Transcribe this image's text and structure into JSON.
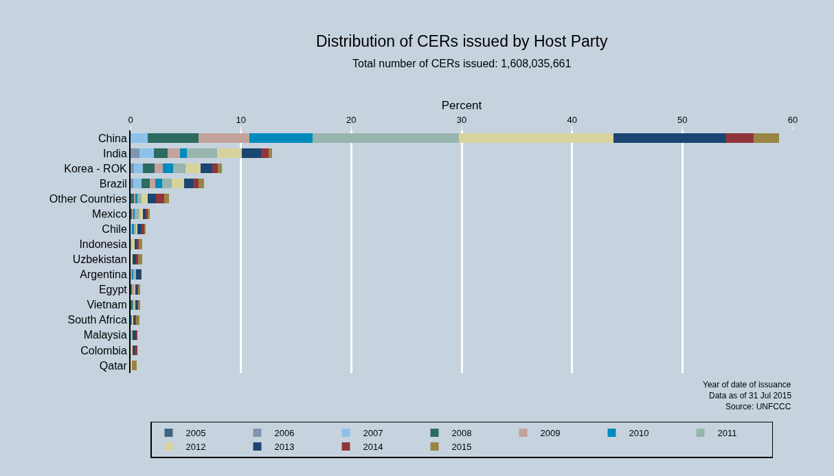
{
  "chart_data": {
    "type": "bar",
    "orientation": "horizontal",
    "stacked": true,
    "title": "Distribution of CERs issued by Host Party",
    "subtitle": "Total number of CERs issued: 1,608,035,661",
    "xlabel": "Percent",
    "categories": [
      "China",
      "India",
      "Korea - ROK",
      "Brazil",
      "Other Countries",
      "Mexico",
      "Chile",
      "Indonesia",
      "Uzbekistan",
      "Argentina",
      "Egypt",
      "Vietnam",
      "South Africa",
      "Malaysia",
      "Colombia",
      "Qatar"
    ],
    "series": [
      {
        "name": "2005",
        "color": "#3e6481",
        "values": [
          0,
          0,
          0,
          0,
          0,
          0,
          0,
          0,
          0,
          0,
          0,
          0,
          0,
          0,
          0,
          0
        ]
      },
      {
        "name": "2006",
        "color": "#7f95ad",
        "values": [
          0,
          0.81,
          0.33,
          0.23,
          0,
          0,
          0,
          0,
          0,
          0,
          0,
          0,
          0,
          0,
          0,
          0
        ]
      },
      {
        "name": "2007",
        "color": "#8cc2ea",
        "values": [
          1.57,
          1.32,
          0.82,
          0.75,
          0,
          0,
          0.14,
          0,
          0,
          0,
          0,
          0,
          0,
          0,
          0,
          0
        ]
      },
      {
        "name": "2008",
        "color": "#2d6b61",
        "values": [
          4.6,
          1.25,
          1.04,
          0.77,
          0.33,
          0.14,
          0,
          0,
          0,
          0,
          0.1,
          0.23,
          0,
          0,
          0,
          0
        ]
      },
      {
        "name": "2009",
        "color": "#c3a29b",
        "values": [
          4.6,
          1.12,
          0.75,
          0.52,
          0.13,
          0.1,
          0,
          0,
          0,
          0.14,
          0.29,
          0,
          0,
          0,
          0,
          0
        ]
      },
      {
        "name": "2010",
        "color": "#008bbc",
        "values": [
          5.7,
          0.6,
          0.92,
          0.57,
          0.19,
          0.15,
          0.17,
          0,
          0,
          0.13,
          0,
          0,
          0.14,
          0,
          0,
          0
        ]
      },
      {
        "name": "2011",
        "color": "#97b5ac",
        "values": [
          13.3,
          2.75,
          1.09,
          0.92,
          0.33,
          0.42,
          0.17,
          0.11,
          0,
          0.25,
          0,
          0.12,
          0,
          0.17,
          0,
          0
        ]
      },
      {
        "name": "2012",
        "color": "#d8d39d",
        "values": [
          14.0,
          2.25,
          1.4,
          1.08,
          0.59,
          0.34,
          0.17,
          0.28,
          0.19,
          0,
          0.09,
          0.13,
          0.17,
          0,
          0.17,
          0.12
        ]
      },
      {
        "name": "2013",
        "color": "#1a4671",
        "values": [
          10.2,
          1.7,
          1.04,
          0.81,
          0.73,
          0.23,
          0.37,
          0.17,
          0.33,
          0.42,
          0.12,
          0.12,
          0.08,
          0.31,
          0.22,
          0
        ]
      },
      {
        "name": "2014",
        "color": "#90353b",
        "values": [
          2.5,
          0.7,
          0.54,
          0.5,
          0.75,
          0.19,
          0.21,
          0.17,
          0.17,
          0.04,
          0.13,
          0.13,
          0.13,
          0.17,
          0.26,
          0
        ]
      },
      {
        "name": "2015",
        "color": "#9a8444",
        "values": [
          2.3,
          0.3,
          0.37,
          0.53,
          0.44,
          0.16,
          0.17,
          0.33,
          0.37,
          0,
          0.12,
          0.12,
          0.29,
          0,
          0,
          0.47
        ]
      }
    ],
    "xlim": [
      0,
      60
    ],
    "xticks": [
      0,
      10,
      20,
      30,
      40,
      50,
      60
    ],
    "grid": "x",
    "legend": "bottom",
    "annotations": [
      "Year of date of issuance",
      "Data as of 31 Jul 2015",
      "Source: UNFCCC"
    ]
  }
}
